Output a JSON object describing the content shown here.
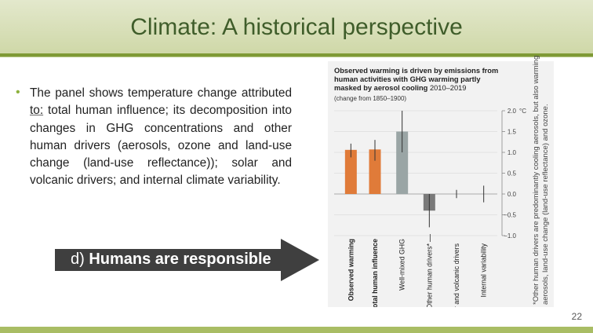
{
  "slide": {
    "title": "Climate: A historical perspective",
    "page_number": "22"
  },
  "bullet": {
    "text_before": "The panel shows temperature change attributed ",
    "underlined": "to:",
    "text_after": " total human influence; its decomposition into changes in GHG concentrations and other human drivers (aerosols, ozone and land-use change (land-use reflectance)); solar and volcanic drivers; and internal climate variability."
  },
  "arrow_callout": {
    "prefix": "d) ",
    "text": "Humans are responsible",
    "color": "#3f3f3f"
  },
  "figure": {
    "title_bold": "Observed warming is driven by emissions from human activities with GHG warming partly masked by aerosol cooling",
    "title_period": " 2010–2019",
    "subtitle": "(change from 1850–1900)",
    "side_note": "*Other human drivers are predominantly cooling aerosols, but also warming aerosols, land-use change (land-use reflectance) and ozone.",
    "colors": {
      "orange": "#e07b39",
      "grey": "#9aa5a5",
      "dark_grey": "#7a7a7a"
    }
  },
  "chart_data": {
    "type": "bar",
    "categories": [
      "Observed warming",
      "Total human influence",
      "Well-mixed GHG",
      "Other human drivers*",
      "Solar and volcanic drivers",
      "Internal variability"
    ],
    "values": [
      1.06,
      1.07,
      1.5,
      -0.4,
      0.0,
      0.0
    ],
    "error_low": [
      0.88,
      0.8,
      1.0,
      -0.8,
      -0.1,
      -0.2
    ],
    "error_high": [
      1.21,
      1.3,
      2.0,
      0.0,
      0.1,
      0.2
    ],
    "bold_labels": [
      true,
      true,
      false,
      false,
      false,
      false
    ],
    "y_ticks": [
      2.0,
      1.5,
      1.0,
      0.5,
      0.0,
      -0.5,
      -1.0
    ],
    "y_tick_labels": [
      "2.0",
      "1.5",
      "1.0",
      "0.5",
      "0.0",
      "−0.5",
      "−1.0"
    ],
    "y_unit": "°C",
    "ylim": [
      -1.0,
      2.0
    ]
  }
}
